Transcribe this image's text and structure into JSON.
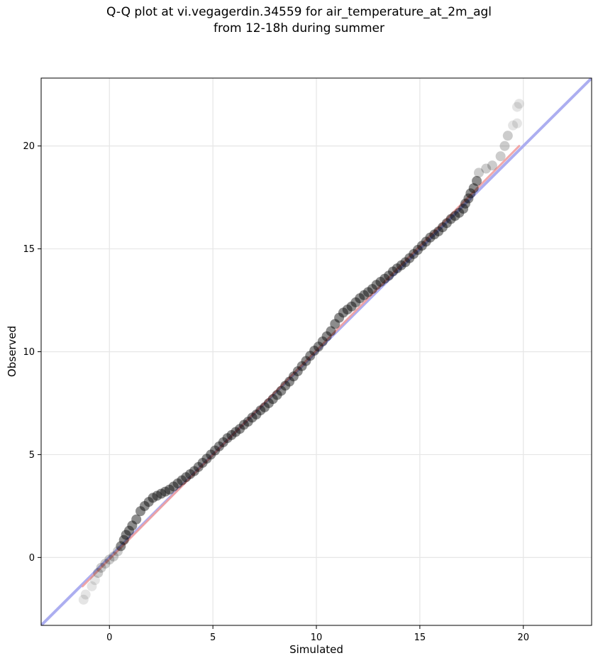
{
  "chart_data": {
    "type": "scatter",
    "title": "Q-Q plot at vi.vegagerdin.34559 for air_temperature_at_2m_agl",
    "subtitle": "from 12-18h during summer",
    "xlabel": "Simulated",
    "ylabel": "Observed",
    "xlim": [
      -3.3,
      23.3
    ],
    "ylim": [
      -3.3,
      23.3
    ],
    "xticks": [
      0,
      5,
      10,
      15,
      20
    ],
    "yticks": [
      0,
      5,
      10,
      15,
      20
    ],
    "grid": true,
    "identity_line": {
      "x": [
        -3.3,
        23.3
      ],
      "y": [
        -3.3,
        23.3
      ],
      "color": "#a8aaf0"
    },
    "fit_line": {
      "x": [
        -1.3,
        19.8
      ],
      "y": [
        -1.4,
        20.0
      ],
      "color": "#f0a0a0"
    },
    "point_color": "#000000",
    "quantiles": [
      [
        -1.25,
        -2.05
      ],
      [
        -1.15,
        -1.8
      ],
      [
        -0.85,
        -1.4
      ],
      [
        -0.7,
        -1.1
      ],
      [
        -0.55,
        -0.75
      ],
      [
        -0.4,
        -0.5
      ],
      [
        -0.2,
        -0.3
      ],
      [
        0.0,
        -0.1
      ],
      [
        0.2,
        0.05
      ],
      [
        0.4,
        0.3
      ],
      [
        0.55,
        0.55
      ],
      [
        0.7,
        0.85
      ],
      [
        0.8,
        1.1
      ],
      [
        0.95,
        1.3
      ],
      [
        1.1,
        1.55
      ],
      [
        1.3,
        1.85
      ],
      [
        1.5,
        2.25
      ],
      [
        1.7,
        2.5
      ],
      [
        1.9,
        2.7
      ],
      [
        2.1,
        2.9
      ],
      [
        2.3,
        3.0
      ],
      [
        2.5,
        3.1
      ],
      [
        2.7,
        3.2
      ],
      [
        2.9,
        3.3
      ],
      [
        3.1,
        3.45
      ],
      [
        3.3,
        3.6
      ],
      [
        3.5,
        3.75
      ],
      [
        3.7,
        3.9
      ],
      [
        3.9,
        4.05
      ],
      [
        4.1,
        4.2
      ],
      [
        4.3,
        4.4
      ],
      [
        4.5,
        4.6
      ],
      [
        4.7,
        4.8
      ],
      [
        4.9,
        5.0
      ],
      [
        5.1,
        5.2
      ],
      [
        5.3,
        5.4
      ],
      [
        5.5,
        5.6
      ],
      [
        5.7,
        5.8
      ],
      [
        5.9,
        5.95
      ],
      [
        6.1,
        6.1
      ],
      [
        6.3,
        6.25
      ],
      [
        6.5,
        6.45
      ],
      [
        6.7,
        6.6
      ],
      [
        6.9,
        6.8
      ],
      [
        7.1,
        6.95
      ],
      [
        7.3,
        7.15
      ],
      [
        7.5,
        7.3
      ],
      [
        7.7,
        7.5
      ],
      [
        7.9,
        7.7
      ],
      [
        8.1,
        7.9
      ],
      [
        8.3,
        8.1
      ],
      [
        8.5,
        8.35
      ],
      [
        8.7,
        8.55
      ],
      [
        8.9,
        8.8
      ],
      [
        9.1,
        9.05
      ],
      [
        9.3,
        9.3
      ],
      [
        9.5,
        9.55
      ],
      [
        9.7,
        9.8
      ],
      [
        9.9,
        10.05
      ],
      [
        10.1,
        10.25
      ],
      [
        10.3,
        10.5
      ],
      [
        10.5,
        10.75
      ],
      [
        10.7,
        11.0
      ],
      [
        10.9,
        11.35
      ],
      [
        11.1,
        11.65
      ],
      [
        11.3,
        11.9
      ],
      [
        11.5,
        12.05
      ],
      [
        11.7,
        12.2
      ],
      [
        11.9,
        12.4
      ],
      [
        12.1,
        12.6
      ],
      [
        12.3,
        12.75
      ],
      [
        12.5,
        12.9
      ],
      [
        12.7,
        13.05
      ],
      [
        12.9,
        13.25
      ],
      [
        13.1,
        13.4
      ],
      [
        13.3,
        13.55
      ],
      [
        13.5,
        13.7
      ],
      [
        13.7,
        13.9
      ],
      [
        13.9,
        14.05
      ],
      [
        14.1,
        14.2
      ],
      [
        14.3,
        14.35
      ],
      [
        14.5,
        14.55
      ],
      [
        14.7,
        14.75
      ],
      [
        14.9,
        14.95
      ],
      [
        15.1,
        15.15
      ],
      [
        15.3,
        15.35
      ],
      [
        15.5,
        15.55
      ],
      [
        15.7,
        15.7
      ],
      [
        15.9,
        15.85
      ],
      [
        16.1,
        16.05
      ],
      [
        16.3,
        16.25
      ],
      [
        16.5,
        16.45
      ],
      [
        16.7,
        16.6
      ],
      [
        16.9,
        16.75
      ],
      [
        17.1,
        16.95
      ],
      [
        17.2,
        17.2
      ],
      [
        17.35,
        17.45
      ],
      [
        17.45,
        17.7
      ],
      [
        17.6,
        17.95
      ],
      [
        17.75,
        18.3
      ],
      [
        17.85,
        18.7
      ],
      [
        18.2,
        18.9
      ],
      [
        18.5,
        19.05
      ],
      [
        18.9,
        19.5
      ],
      [
        19.1,
        20.0
      ],
      [
        19.25,
        20.5
      ],
      [
        19.5,
        21.0
      ],
      [
        19.7,
        21.1
      ],
      [
        19.7,
        21.9
      ],
      [
        19.8,
        22.05
      ]
    ]
  }
}
